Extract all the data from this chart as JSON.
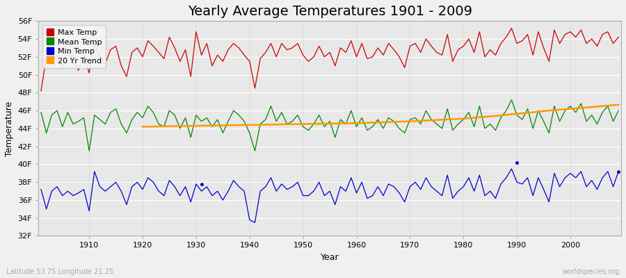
{
  "title": "Yearly Average Temperatures 1901 - 2009",
  "xlabel": "Year",
  "ylabel": "Temperature",
  "subtitle_left": "Latitude 53.75 Longitude 21.25",
  "subtitle_right": "worldspecies.org",
  "ylim_min": 32,
  "ylim_max": 56,
  "yticks": [
    32,
    34,
    36,
    38,
    40,
    42,
    44,
    46,
    48,
    50,
    52,
    54,
    56
  ],
  "ytick_labels": [
    "32F",
    "34F",
    "36F",
    "38F",
    "40F",
    "42F",
    "44F",
    "46F",
    "48F",
    "50F",
    "52F",
    "54F",
    "56F"
  ],
  "years": [
    1901,
    1902,
    1903,
    1904,
    1905,
    1906,
    1907,
    1908,
    1909,
    1910,
    1911,
    1912,
    1913,
    1914,
    1915,
    1916,
    1917,
    1918,
    1919,
    1920,
    1921,
    1922,
    1923,
    1924,
    1925,
    1926,
    1927,
    1928,
    1929,
    1930,
    1931,
    1932,
    1933,
    1934,
    1935,
    1936,
    1937,
    1938,
    1939,
    1940,
    1941,
    1942,
    1943,
    1944,
    1945,
    1946,
    1947,
    1948,
    1949,
    1950,
    1951,
    1952,
    1953,
    1954,
    1955,
    1956,
    1957,
    1958,
    1959,
    1960,
    1961,
    1962,
    1963,
    1964,
    1965,
    1966,
    1967,
    1968,
    1969,
    1970,
    1971,
    1972,
    1973,
    1974,
    1975,
    1976,
    1977,
    1978,
    1979,
    1980,
    1981,
    1982,
    1983,
    1984,
    1985,
    1986,
    1987,
    1988,
    1989,
    1990,
    1991,
    1992,
    1993,
    1994,
    1995,
    1996,
    1997,
    1998,
    1999,
    2000,
    2001,
    2002,
    2003,
    2004,
    2005,
    2006,
    2007,
    2008,
    2009
  ],
  "max_temp": [
    48.2,
    52.0,
    51.5,
    52.2,
    51.0,
    52.5,
    51.8,
    50.5,
    52.3,
    50.2,
    53.5,
    52.0,
    51.2,
    52.8,
    53.2,
    51.0,
    49.8,
    52.5,
    53.0,
    52.0,
    53.8,
    53.2,
    52.5,
    51.8,
    54.2,
    53.0,
    51.5,
    52.8,
    49.8,
    54.8,
    52.2,
    53.5,
    51.0,
    52.2,
    51.5,
    52.8,
    53.5,
    53.0,
    52.2,
    51.5,
    48.5,
    51.8,
    52.5,
    53.5,
    52.0,
    53.5,
    52.8,
    53.0,
    53.5,
    52.2,
    51.5,
    52.0,
    53.2,
    52.0,
    52.5,
    51.0,
    53.0,
    52.5,
    53.8,
    52.0,
    53.5,
    51.8,
    52.0,
    53.0,
    52.2,
    53.5,
    52.8,
    52.0,
    50.8,
    53.2,
    53.5,
    52.5,
    54.0,
    53.2,
    52.5,
    52.2,
    54.5,
    51.5,
    52.8,
    53.2,
    54.0,
    52.5,
    54.8,
    52.0,
    52.8,
    52.2,
    53.5,
    54.2,
    55.2,
    53.5,
    53.8,
    54.5,
    52.2,
    54.8,
    53.0,
    51.5,
    55.0,
    53.5,
    54.5,
    54.8,
    54.2,
    55.0,
    53.5,
    54.0,
    53.2,
    54.5,
    54.8,
    53.5,
    54.2
  ],
  "mean_temp": [
    45.8,
    43.5,
    45.5,
    46.0,
    44.2,
    45.8,
    44.5,
    44.8,
    45.2,
    41.5,
    45.5,
    45.0,
    44.5,
    45.8,
    46.2,
    44.5,
    43.5,
    45.0,
    45.8,
    45.2,
    46.5,
    45.8,
    44.5,
    44.2,
    46.0,
    45.5,
    44.0,
    45.2,
    43.0,
    45.5,
    44.8,
    45.2,
    44.2,
    45.0,
    43.5,
    44.8,
    46.0,
    45.5,
    44.8,
    43.5,
    41.5,
    44.5,
    45.0,
    46.5,
    44.8,
    45.8,
    44.5,
    44.8,
    45.5,
    44.2,
    43.8,
    44.5,
    45.5,
    44.2,
    44.8,
    43.0,
    45.0,
    44.5,
    46.0,
    44.2,
    45.2,
    43.8,
    44.2,
    45.0,
    44.0,
    45.2,
    44.8,
    44.0,
    43.5,
    45.0,
    45.2,
    44.5,
    46.0,
    45.0,
    44.5,
    44.0,
    46.2,
    43.8,
    44.5,
    45.0,
    45.8,
    44.2,
    46.5,
    44.0,
    44.5,
    43.8,
    45.2,
    46.0,
    47.2,
    45.5,
    45.0,
    46.2,
    44.0,
    46.0,
    44.8,
    43.5,
    46.5,
    44.8,
    46.0,
    46.5,
    45.8,
    46.8,
    44.8,
    45.5,
    44.5,
    45.8,
    46.5,
    44.8,
    46.0
  ],
  "min_temp": [
    37.2,
    35.0,
    37.0,
    37.5,
    36.5,
    37.0,
    36.5,
    36.8,
    37.2,
    34.8,
    39.2,
    37.5,
    37.0,
    37.5,
    38.0,
    37.0,
    35.5,
    37.5,
    38.0,
    37.2,
    38.5,
    38.0,
    37.0,
    36.5,
    38.2,
    37.5,
    36.5,
    37.5,
    35.8,
    37.8,
    37.0,
    37.5,
    36.5,
    37.0,
    36.0,
    37.0,
    38.2,
    37.5,
    37.0,
    33.8,
    33.5,
    37.0,
    37.5,
    38.5,
    37.0,
    37.8,
    37.2,
    37.5,
    38.0,
    36.5,
    36.5,
    37.0,
    38.0,
    36.5,
    37.0,
    35.5,
    37.5,
    37.0,
    38.5,
    36.8,
    38.0,
    36.2,
    36.5,
    37.5,
    36.5,
    37.8,
    37.5,
    36.8,
    35.8,
    37.5,
    38.0,
    37.2,
    38.5,
    37.5,
    37.0,
    36.5,
    38.8,
    36.2,
    37.0,
    37.5,
    38.5,
    37.0,
    38.8,
    36.5,
    37.0,
    36.2,
    37.8,
    38.5,
    39.5,
    38.0,
    37.8,
    38.5,
    36.5,
    38.5,
    37.2,
    35.8,
    39.0,
    37.5,
    38.5,
    39.0,
    38.5,
    39.2,
    37.5,
    38.2,
    37.2,
    38.5,
    39.2,
    37.5,
    39.2
  ],
  "trend_years": [
    1920,
    1921,
    1922,
    1923,
    1924,
    1925,
    1926,
    1927,
    1928,
    1929,
    1930,
    1931,
    1932,
    1933,
    1934,
    1935,
    1936,
    1937,
    1938,
    1939,
    1940,
    1941,
    1942,
    1943,
    1944,
    1945,
    1946,
    1947,
    1948,
    1949,
    1950,
    1951,
    1952,
    1953,
    1954,
    1955,
    1956,
    1957,
    1958,
    1959,
    1960,
    1961,
    1962,
    1963,
    1964,
    1965,
    1966,
    1967,
    1968,
    1969,
    1970,
    1971,
    1972,
    1973,
    1974,
    1975,
    1976,
    1977,
    1978,
    1979,
    1980,
    1981,
    1982,
    1983,
    1984,
    1985,
    1986,
    1987,
    1988,
    1989,
    1990,
    1991,
    1992,
    1993,
    1994,
    1995,
    1996,
    1997,
    1998,
    1999,
    2000,
    2001,
    2002,
    2003,
    2004,
    2005,
    2006,
    2007,
    2008,
    2009
  ],
  "trend": [
    44.2,
    44.21,
    44.22,
    44.23,
    44.24,
    44.25,
    44.26,
    44.27,
    44.28,
    44.29,
    44.3,
    44.31,
    44.32,
    44.33,
    44.34,
    44.35,
    44.36,
    44.37,
    44.38,
    44.39,
    44.4,
    44.41,
    44.42,
    44.43,
    44.44,
    44.45,
    44.46,
    44.47,
    44.48,
    44.49,
    44.5,
    44.51,
    44.52,
    44.53,
    44.54,
    44.55,
    44.56,
    44.57,
    44.58,
    44.59,
    44.6,
    44.62,
    44.64,
    44.66,
    44.68,
    44.7,
    44.72,
    44.74,
    44.76,
    44.78,
    44.8,
    44.83,
    44.86,
    44.89,
    44.92,
    44.95,
    44.98,
    45.01,
    45.04,
    45.07,
    45.1,
    45.15,
    45.2,
    45.25,
    45.3,
    45.35,
    45.4,
    45.46,
    45.52,
    45.58,
    45.64,
    45.7,
    45.76,
    45.82,
    45.88,
    45.94,
    46.0,
    46.05,
    46.1,
    46.15,
    46.2,
    46.25,
    46.3,
    46.35,
    46.4,
    46.45,
    46.5,
    46.55,
    46.6,
    46.65
  ],
  "isolated_blue_points": [
    [
      1931,
      37.8
    ],
    [
      1990,
      40.2
    ],
    [
      2009,
      39.2
    ]
  ],
  "bg_color": "#f0f0f0",
  "plot_bg_color": "#e8e8e8",
  "grid_color_h": "#ffffff",
  "grid_color_v": "#cccccc",
  "max_color": "#cc0000",
  "mean_color": "#008800",
  "min_color": "#0000cc",
  "trend_color": "#ff9900",
  "title_fontsize": 14,
  "label_fontsize": 9,
  "tick_fontsize": 8,
  "legend_fontsize": 8,
  "xticks": [
    1910,
    1920,
    1930,
    1940,
    1950,
    1960,
    1970,
    1980,
    1990,
    2000
  ]
}
